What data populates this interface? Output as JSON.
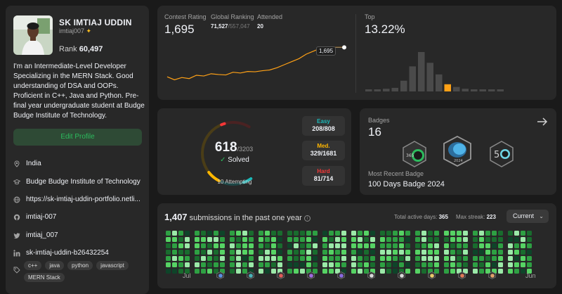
{
  "profile": {
    "name": "SK IMTIAJ UDDIN",
    "username": "imtiaj007",
    "rank_label": "Rank",
    "rank_value": "60,497",
    "bio": "I'm an Intermediate-Level Developer Specializing in the MERN Stack. Good understanding of DSA and OOPs. Proficient in C++, Java and Python. Pre-final year undergraduate student at Budge Budge Institute of Technology.",
    "edit_label": "Edit Profile",
    "location": "India",
    "school": "Budge Budge Institute of Technology",
    "website": "https://sk-imtiaj-uddin-portfolio.netli...",
    "github": "imtiaj-007",
    "twitter": "imtiaj_007",
    "linkedin": "sk-imtiaj-uddin-b26432254",
    "tags": [
      "c++",
      "java",
      "python",
      "javascript",
      "MERN Stack"
    ],
    "accent_color": "#2cbb5d"
  },
  "contest": {
    "rating_label": "Contest Rating",
    "rating_value": "1,695",
    "global_label": "Global Ranking",
    "global_value": "71,527",
    "global_total": "/557,047",
    "attended_label": "Attended",
    "attended_value": "20",
    "tooltip": "1,695",
    "top_label": "Top",
    "top_value": "13.22%",
    "line_color": "#ffa116",
    "rating_series": [
      1500,
      1480,
      1495,
      1488,
      1510,
      1505,
      1520,
      1515,
      1512,
      1530,
      1525,
      1535,
      1533,
      1540,
      1545,
      1560,
      1580,
      1600,
      1620,
      1650,
      1670,
      1690,
      1695,
      1695,
      1695
    ],
    "histogram": [
      2,
      2,
      3,
      4,
      12,
      28,
      44,
      32,
      19,
      8,
      5,
      3,
      2,
      2,
      2,
      1
    ],
    "histogram_highlight": 9
  },
  "solved": {
    "count": "618",
    "total": "/3203",
    "solved_label": "Solved",
    "attempting": "10 Attempting",
    "easy_label": "Easy",
    "easy_value": "208/808",
    "medium_label": "Med.",
    "medium_value": "329/1681",
    "hard_label": "Hard",
    "hard_value": "81/714",
    "easy_color": "#1cbaba",
    "medium_color": "#ffb700",
    "hard_color": "#f63737",
    "easy_fraction": 0.257,
    "medium_fraction": 0.196,
    "hard_fraction": 0.113
  },
  "badges": {
    "label": "Badges",
    "count": "16",
    "recent_label": "Most Recent Badge",
    "recent_name": "100 Days Badge 2024",
    "badge_icons": [
      "365-days-badge-icon",
      "badge-2024-icon",
      "50-days-badge-icon"
    ]
  },
  "submissions": {
    "count": "1,407",
    "text": "submissions in the past one year",
    "active_label": "Total active days:",
    "active_value": "365",
    "streak_label": "Max streak:",
    "streak_value": "223",
    "select_value": "Current",
    "months": [
      "Jul",
      "Jun"
    ],
    "month_icons": [
      "monthly-badge-aug-icon",
      "monthly-badge-sep-icon",
      "monthly-badge-oct-icon",
      "monthly-badge-nov-icon",
      "monthly-badge-dec-icon",
      "monthly-badge-jan-icon",
      "monthly-badge-feb-icon",
      "monthly-badge-mar-icon",
      "monthly-badge-apr-icon",
      "monthly-badge-may-icon"
    ],
    "heat_colors": [
      "#0e4429",
      "#196c2e",
      "#2ea043",
      "#56d364",
      "#9be9a8"
    ]
  }
}
